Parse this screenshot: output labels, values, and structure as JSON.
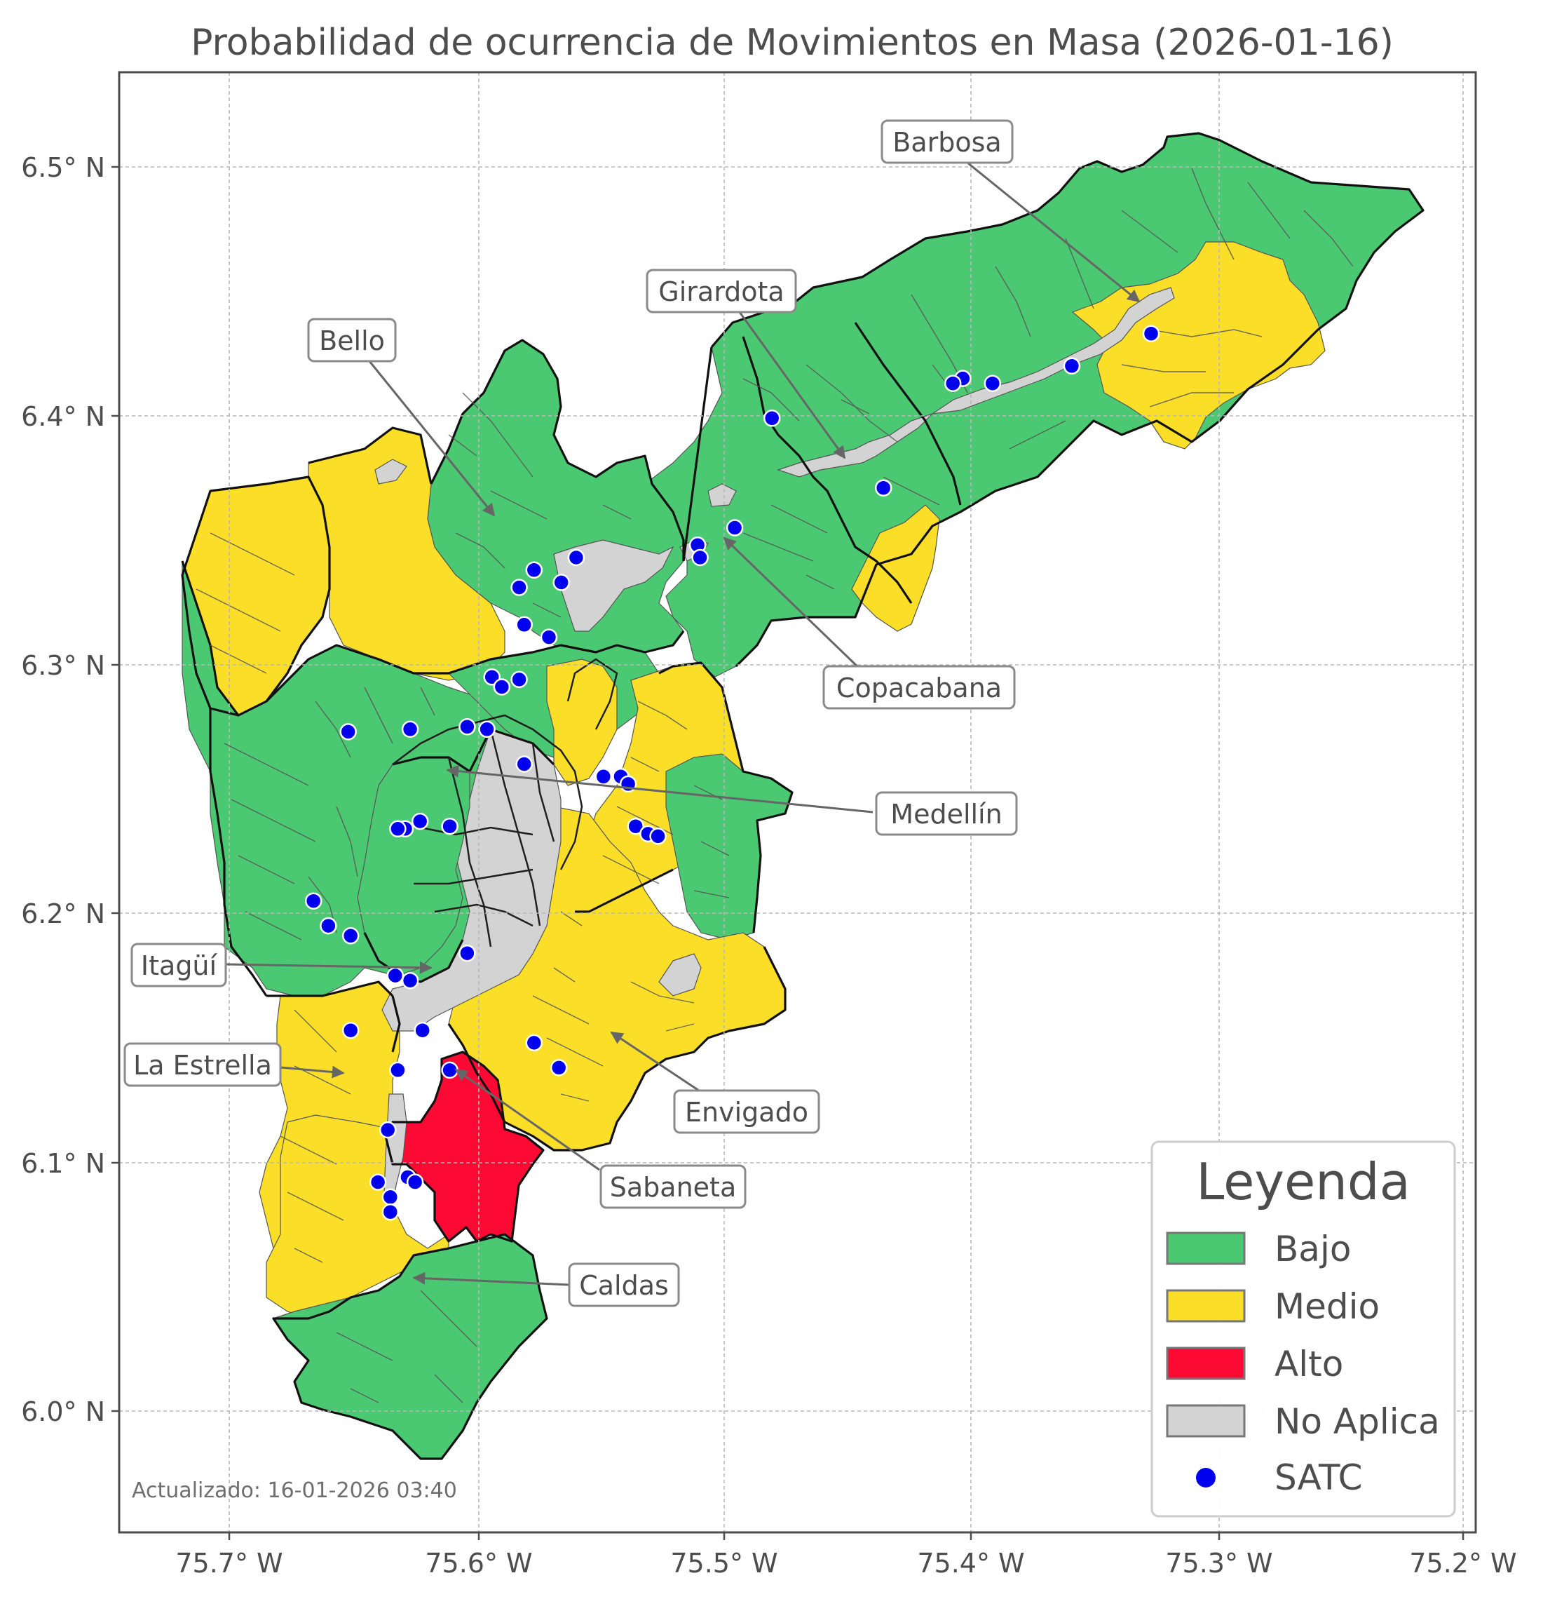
{
  "title": "Probabilidad de ocurrencia de Movimientos en Masa (2026-01-16)",
  "updated": "Actualizado: 16-01-2026 03:40",
  "x_ticks": [
    "75.7° W",
    "75.6° W",
    "75.5° W",
    "75.4° W",
    "75.3° W",
    "75.2° W"
  ],
  "y_ticks": [
    "6.5° N",
    "6.4° N",
    "6.3° N",
    "6.2° N",
    "6.1° N",
    "6.0° N"
  ],
  "colors": {
    "bajo": "#4bc872",
    "medio": "#fbde27",
    "alto": "#fc0a33",
    "no_aplica": "#d3d3d3",
    "satc": "#0000ee",
    "border": "#111111",
    "grid": "#b7b7b7"
  },
  "legend": {
    "title": "Leyenda",
    "items": [
      {
        "label": "Bajo",
        "kind": "bajo"
      },
      {
        "label": "Medio",
        "kind": "medio"
      },
      {
        "label": "Alto",
        "kind": "alto"
      },
      {
        "label": "No Aplica",
        "kind": "no_aplica"
      },
      {
        "label": "SATC",
        "kind": "satc"
      }
    ]
  },
  "municipalities": [
    {
      "name": "Barbosa",
      "lon": -75.33,
      "lat": 6.44
    },
    {
      "name": "Girardota",
      "lon": -75.45,
      "lat": 6.38
    },
    {
      "name": "Bello",
      "lon": -75.59,
      "lat": 6.36
    },
    {
      "name": "Copacabana",
      "lon": -75.5,
      "lat": 6.35
    },
    {
      "name": "Medellín",
      "lon": -75.61,
      "lat": 6.26
    },
    {
      "name": "Itagüí",
      "lon": -75.62,
      "lat": 6.18
    },
    {
      "name": "La Estrella",
      "lon": -75.64,
      "lat": 6.14
    },
    {
      "name": "Envigado",
      "lon": -75.54,
      "lat": 6.15
    },
    {
      "name": "Sabaneta",
      "lon": -75.61,
      "lat": 6.14
    },
    {
      "name": "Caldas",
      "lon": -75.63,
      "lat": 6.06
    }
  ],
  "satc_stations": [
    [
      -75.328,
      6.433
    ],
    [
      -75.36,
      6.42
    ],
    [
      -75.392,
      6.413
    ],
    [
      -75.404,
      6.415
    ],
    [
      -75.408,
      6.413
    ],
    [
      -75.481,
      6.399
    ],
    [
      -75.436,
      6.371
    ],
    [
      -75.496,
      6.355
    ],
    [
      -75.511,
      6.348
    ],
    [
      -75.51,
      6.343
    ],
    [
      -75.56,
      6.343
    ],
    [
      -75.566,
      6.333
    ],
    [
      -75.577,
      6.338
    ],
    [
      -75.583,
      6.331
    ],
    [
      -75.581,
      6.316
    ],
    [
      -75.571,
      6.311
    ],
    [
      -75.594,
      6.295
    ],
    [
      -75.583,
      6.294
    ],
    [
      -75.59,
      6.291
    ],
    [
      -75.652,
      6.273
    ],
    [
      -75.627,
      6.274
    ],
    [
      -75.604,
      6.275
    ],
    [
      -75.596,
      6.274
    ],
    [
      -75.581,
      6.26
    ],
    [
      -75.549,
      6.255
    ],
    [
      -75.542,
      6.255
    ],
    [
      -75.539,
      6.252
    ],
    [
      -75.536,
      6.235
    ],
    [
      -75.531,
      6.232
    ],
    [
      -75.527,
      6.231
    ],
    [
      -75.623,
      6.237
    ],
    [
      -75.611,
      6.235
    ],
    [
      -75.629,
      6.234
    ],
    [
      -75.632,
      6.234
    ],
    [
      -75.666,
      6.205
    ],
    [
      -75.66,
      6.195
    ],
    [
      -75.651,
      6.191
    ],
    [
      -75.604,
      6.184
    ],
    [
      -75.633,
      6.175
    ],
    [
      -75.627,
      6.173
    ],
    [
      -75.622,
      6.153
    ],
    [
      -75.651,
      6.153
    ],
    [
      -75.567,
      6.138
    ],
    [
      -75.577,
      6.148
    ],
    [
      -75.611,
      6.137
    ],
    [
      -75.632,
      6.137
    ],
    [
      -75.636,
      6.113
    ],
    [
      -75.64,
      6.092
    ],
    [
      -75.628,
      6.094
    ],
    [
      -75.625,
      6.092
    ],
    [
      -75.635,
      6.086
    ],
    [
      -75.635,
      6.08
    ]
  ]
}
